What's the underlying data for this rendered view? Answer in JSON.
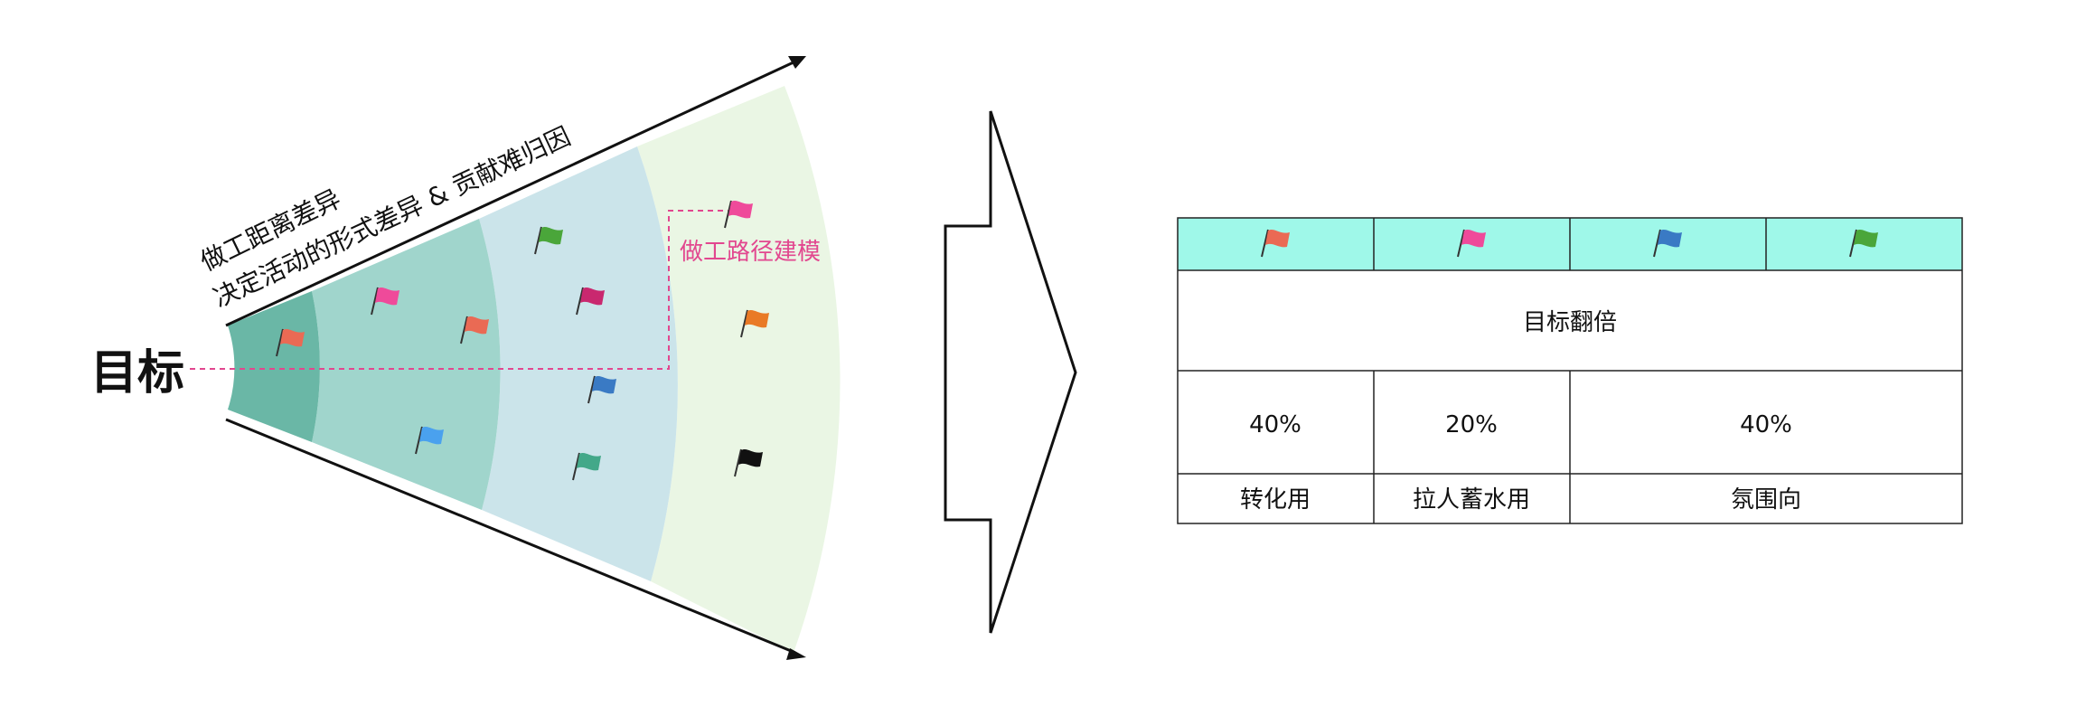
{
  "diagram": {
    "goal_label": "目标",
    "axis_label_line1": "做工距离差异",
    "axis_label_line2": "决定活动的形式差异 & 贡献难归因",
    "path_label": "做工路径建模",
    "colors": {
      "band_inner": "#6ab7a6",
      "band_2": "#a0d5cc",
      "band_3": "#cbe4ea",
      "band_outer": "#eaf6e4",
      "path_line": "#e2478f",
      "arrow": "#111111"
    },
    "fan_flags": [
      {
        "id": "flag-1",
        "color": "#ea6a54"
      },
      {
        "id": "flag-2",
        "color": "#ef4a9a"
      },
      {
        "id": "flag-3",
        "color": "#ea6a54"
      },
      {
        "id": "flag-4",
        "color": "#4aa1ee"
      },
      {
        "id": "flag-5",
        "color": "#4aa63a"
      },
      {
        "id": "flag-6",
        "color": "#c9286f"
      },
      {
        "id": "flag-7",
        "color": "#3a7ac4"
      },
      {
        "id": "flag-8",
        "color": "#43a889"
      },
      {
        "id": "flag-9",
        "color": "#ef4a9a"
      },
      {
        "id": "flag-10",
        "color": "#e97a26"
      },
      {
        "id": "flag-11",
        "color": "#111111"
      }
    ]
  },
  "table": {
    "header_bg": "#9ff8e9",
    "header_flags": [
      {
        "color": "#ea6a54"
      },
      {
        "color": "#ef4a9a"
      },
      {
        "color": "#3a7ac4"
      },
      {
        "color": "#4aa63a"
      }
    ],
    "goal_row": "目标翻倍",
    "percents": [
      "40%",
      "20%",
      "40%"
    ],
    "categories": [
      "转化用",
      "拉人蓄水用",
      "氛围向"
    ]
  }
}
